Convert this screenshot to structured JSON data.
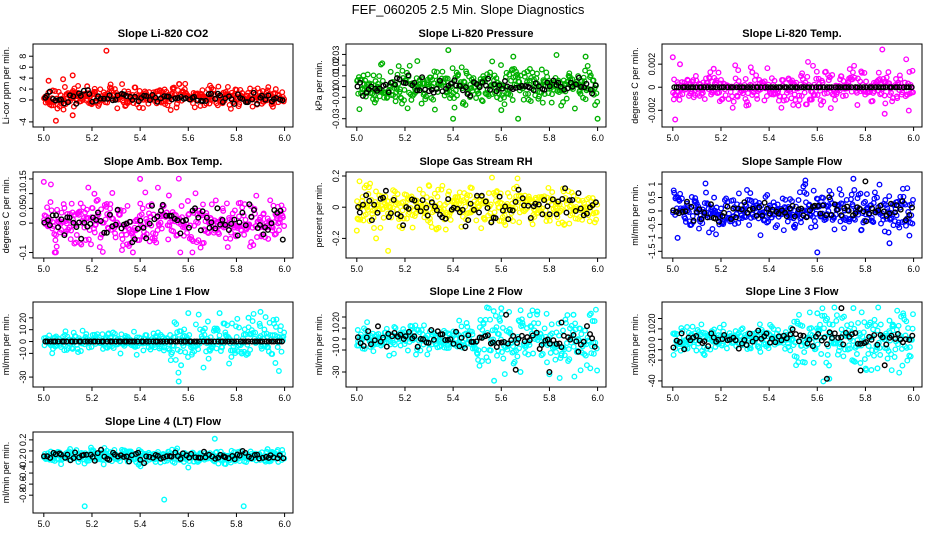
{
  "figure": {
    "title": "FEF_060205  2.5 Min. Slope Diagnostics"
  },
  "chart_data": [
    {
      "type": "scatter",
      "title": "Slope Li-820 CO2",
      "ylabel": "Li-cor ppm per min.",
      "xlim": [
        4.98,
        6.01
      ],
      "ylim": [
        -4.2,
        9.5
      ],
      "xticks": [
        5.0,
        5.2,
        5.4,
        5.6,
        5.8,
        6.0
      ],
      "yticks": [
        -4,
        0,
        2,
        4,
        6,
        8
      ],
      "colors": [
        "#ff0000",
        "#000000"
      ],
      "series": [
        {
          "color": "#ff0000",
          "center": 0.5,
          "spread": 0.9,
          "outliers": [
            [
              5.02,
              3.5
            ],
            [
              5.05,
              -3.8
            ],
            [
              5.08,
              3.8
            ],
            [
              5.12,
              4.5
            ],
            [
              5.26,
              9.0
            ],
            [
              5.18,
              2.5
            ],
            [
              5.12,
              -2.8
            ]
          ]
        },
        {
          "color": "#000000",
          "center": 0.4,
          "spread": 0.6,
          "outliers": []
        }
      ]
    },
    {
      "type": "scatter",
      "title": "Slope Li-820 Pressure",
      "ylabel": "kPa per min.",
      "xlim": [
        4.98,
        6.01
      ],
      "ylim": [
        -0.034,
        0.036
      ],
      "xticks": [
        5.0,
        5.2,
        5.4,
        5.6,
        5.8,
        6.0
      ],
      "yticks": [
        -0.03,
        -0.01,
        0.0,
        0.01,
        0.02,
        0.03
      ],
      "colors": [
        "#00b000",
        "#000000"
      ],
      "series": [
        {
          "color": "#00b000",
          "center": 0.0,
          "spread": 0.008,
          "outliers": [
            [
              5.38,
              0.034
            ],
            [
              5.65,
              0.028
            ],
            [
              5.4,
              -0.03
            ],
            [
              5.67,
              -0.03
            ],
            [
              6.0,
              -0.03
            ],
            [
              5.95,
              0.028
            ],
            [
              5.6,
              -0.022
            ]
          ]
        },
        {
          "color": "#000000",
          "center": 0.0,
          "spread": 0.004,
          "outliers": []
        }
      ]
    },
    {
      "type": "scatter",
      "title": "Slope Li-820 Temp.",
      "ylabel": "degrees C per min.",
      "xlim": [
        4.98,
        6.01
      ],
      "ylim": [
        -0.0031,
        0.0034
      ],
      "xticks": [
        5.0,
        5.2,
        5.4,
        5.6,
        5.8,
        6.0
      ],
      "yticks": [
        -0.002,
        0.0,
        0.002
      ],
      "colors": [
        "#ff00ff",
        "#000000"
      ],
      "series": [
        {
          "color": "#ff00ff",
          "center": 0.0,
          "spread": 0.0007,
          "outliers": [
            [
              5.87,
              0.0033
            ],
            [
              5.01,
              -0.0028
            ],
            [
              5.88,
              -0.0023
            ],
            [
              5.03,
              0.002
            ],
            [
              5.17,
              0.0016
            ],
            [
              5.33,
              0.0013
            ],
            [
              5.0,
              0.0026
            ]
          ]
        },
        {
          "color": "#000000",
          "center": 0.0,
          "spread": 0.0,
          "outliers": []
        }
      ]
    },
    {
      "type": "scatter",
      "title": "Slope Amb. Box Temp.",
      "ylabel": "degrees C per min.",
      "xlim": [
        4.98,
        6.01
      ],
      "ylim": [
        -0.105,
        0.16
      ],
      "xticks": [
        5.0,
        5.2,
        5.4,
        5.6,
        5.8,
        6.0
      ],
      "yticks": [
        -0.1,
        0.0,
        0.05,
        0.1,
        0.15
      ],
      "colors": [
        "#ff00ff",
        "#000000"
      ],
      "series": [
        {
          "color": "#ff00ff",
          "center": 0.0,
          "spread": 0.045,
          "outliers": [
            [
              5.4,
              0.15
            ],
            [
              5.0,
              0.14
            ],
            [
              5.21,
              0.1
            ],
            [
              5.05,
              -0.1
            ],
            [
              5.37,
              -0.1
            ]
          ]
        },
        {
          "color": "#000000",
          "center": 0.0,
          "spread": 0.03,
          "outliers": []
        }
      ]
    },
    {
      "type": "scatter",
      "title": "Slope Gas Stream RH",
      "ylabel": "percent per min.",
      "xlim": [
        4.98,
        6.01
      ],
      "ylim": [
        -0.3,
        0.2
      ],
      "xticks": [
        5.0,
        5.2,
        5.4,
        5.6,
        5.8,
        6.0
      ],
      "yticks": [
        -0.2,
        0.0,
        0.2
      ],
      "colors": [
        "#ffff00",
        "#000000"
      ],
      "series": [
        {
          "color": "#ffff00",
          "center": 0.0,
          "spread": 0.06,
          "outliers": [
            [
              5.13,
              -0.28
            ],
            [
              5.08,
              -0.2
            ],
            [
              5.0,
              -0.15
            ],
            [
              5.04,
              0.14
            ]
          ]
        },
        {
          "color": "#000000",
          "center": 0.0,
          "spread": 0.05,
          "outliers": []
        }
      ]
    },
    {
      "type": "scatter",
      "title": "Slope Sample Flow",
      "ylabel": "ml/min per min.",
      "xlim": [
        4.98,
        6.01
      ],
      "ylim": [
        -1.6,
        1.3
      ],
      "xticks": [
        5.0,
        5.2,
        5.4,
        5.6,
        5.8,
        6.0
      ],
      "yticks": [
        -1.5,
        -1.0,
        -0.5,
        0.0,
        0.5,
        1.0
      ],
      "colors": [
        "#0000ff",
        "#000000"
      ],
      "series": [
        {
          "color": "#0000ff",
          "center": 0.0,
          "spread": 0.35,
          "outliers": [
            [
              5.6,
              -1.55
            ],
            [
              5.75,
              1.2
            ],
            [
              5.55,
              1.0
            ],
            [
              5.02,
              -1.0
            ],
            [
              5.9,
              -1.2
            ]
          ]
        },
        {
          "color": "#000000",
          "center": 0.0,
          "spread": 0.2,
          "outliers": [
            [
              5.8,
              1.1
            ]
          ]
        }
      ]
    },
    {
      "type": "scatter",
      "title": "Slope Line 1 Flow",
      "ylabel": "ml/min per min.",
      "xlim": [
        4.98,
        6.01
      ],
      "ylim": [
        -35,
        30
      ],
      "xticks": [
        5.0,
        5.2,
        5.4,
        5.6,
        5.8,
        6.0
      ],
      "yticks": [
        -30,
        -10,
        0,
        10,
        20
      ],
      "colors": [
        "#00ffff",
        "#000000"
      ],
      "series": [
        {
          "color": "#00ffff",
          "center": 0.0,
          "spread": 4.0,
          "outliers": [
            [
              5.56,
              -34
            ],
            [
              5.57,
              -20
            ],
            [
              5.9,
              25
            ],
            [
              5.85,
              20
            ],
            [
              5.6,
              24
            ],
            [
              5.73,
              24
            ]
          ]
        },
        {
          "color": "#000000",
          "center": 0.0,
          "spread": 0.0,
          "outliers": []
        }
      ]
    },
    {
      "type": "scatter",
      "title": "Slope Line 2 Flow",
      "ylabel": "ml/min per min.",
      "xlim": [
        4.98,
        6.01
      ],
      "ylim": [
        -40,
        30
      ],
      "xticks": [
        5.0,
        5.2,
        5.4,
        5.6,
        5.8,
        6.0
      ],
      "yticks": [
        -30,
        -10,
        0,
        10,
        20
      ],
      "colors": [
        "#00ffff",
        "#000000"
      ],
      "series": [
        {
          "color": "#00ffff",
          "center": 0.0,
          "spread": 6.0,
          "outliers": [
            [
              5.57,
              -38
            ],
            [
              5.6,
              28
            ],
            [
              5.68,
              -30
            ],
            [
              5.75,
              25
            ],
            [
              5.8,
              -32
            ],
            [
              5.9,
              22
            ]
          ]
        },
        {
          "color": "#000000",
          "center": 0.0,
          "spread": 5.0,
          "outliers": [
            [
              5.62,
              22
            ],
            [
              5.66,
              -28
            ],
            [
              5.8,
              -30
            ],
            [
              5.85,
              15
            ]
          ]
        }
      ]
    },
    {
      "type": "scatter",
      "title": "Slope Line 3 Flow",
      "ylabel": "ml/min per min.",
      "xlim": [
        4.98,
        6.01
      ],
      "ylim": [
        -42,
        32
      ],
      "xticks": [
        5.0,
        5.2,
        5.4,
        5.6,
        5.8,
        6.0
      ],
      "yticks": [
        -40,
        -20,
        -10,
        0,
        10,
        20
      ],
      "colors": [
        "#00ffff",
        "#000000"
      ],
      "series": [
        {
          "color": "#00ffff",
          "center": 0.0,
          "spread": 6.0,
          "outliers": [
            [
              5.6,
              25
            ],
            [
              5.65,
              -38
            ],
            [
              5.75,
              30
            ],
            [
              5.85,
              -28
            ],
            [
              5.9,
              18
            ]
          ]
        },
        {
          "color": "#000000",
          "center": 0.0,
          "spread": 4.0,
          "outliers": [
            [
              5.64,
              -38
            ],
            [
              5.7,
              30
            ],
            [
              5.78,
              -30
            ],
            [
              5.88,
              -25
            ]
          ]
        }
      ]
    },
    {
      "type": "scatter",
      "title": "Slope Line 4 (LT) Flow",
      "ylabel": "ml/min per min.",
      "xlim": [
        4.98,
        6.01
      ],
      "ylim": [
        -1.05,
        0.27
      ],
      "xticks": [
        5.0,
        5.2,
        5.4,
        5.6,
        5.8,
        6.0
      ],
      "yticks": [
        -0.8,
        -0.6,
        -0.4,
        -0.2,
        0.0,
        0.2
      ],
      "colors": [
        "#00ffff",
        "#000000"
      ],
      "series": [
        {
          "color": "#00ffff",
          "center": -0.1,
          "spread": 0.06,
          "outliers": [
            [
              5.17,
              -1.0
            ],
            [
              5.5,
              -0.88
            ],
            [
              5.83,
              -1.0
            ],
            [
              5.71,
              0.22
            ],
            [
              5.6,
              -0.3
            ]
          ]
        },
        {
          "color": "#000000",
          "center": -0.1,
          "spread": 0.04,
          "outliers": []
        }
      ]
    }
  ]
}
